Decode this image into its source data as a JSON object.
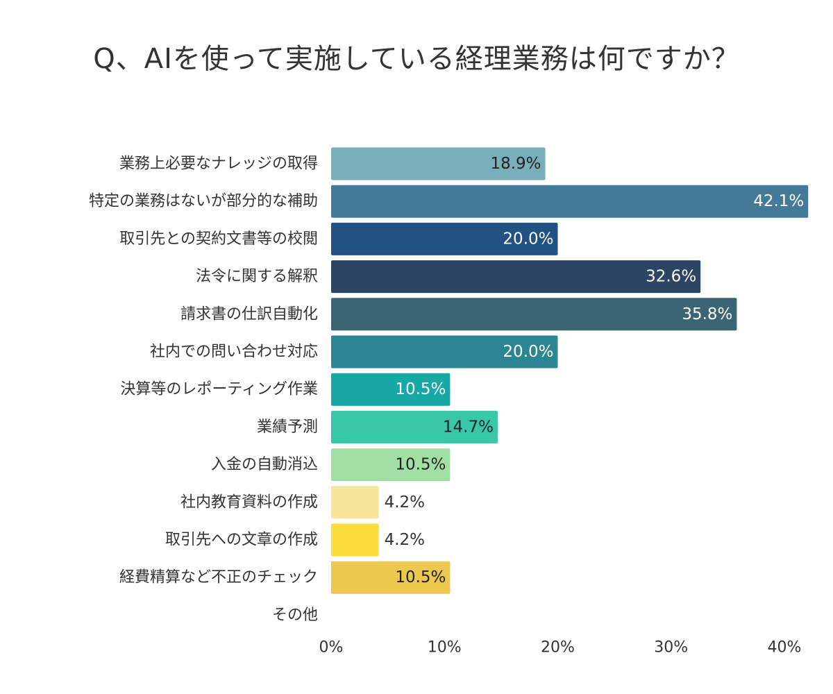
{
  "chart_data": {
    "type": "bar",
    "orientation": "horizontal",
    "title": "Q、AIを使って実施している経理業務は何ですか？",
    "categories": [
      "業務上必要なナレッジの取得",
      "特定の業務はないが部分的な補助",
      "取引先との契約文書等の校閲",
      "法令に関する解釈",
      "請求書の仕訳自動化",
      "社内での問い合わせ対応",
      "決算等のレポーティング作業",
      "業績予測",
      "入金の自動消込",
      "社内教育資料の作成",
      "取引先への文章の作成",
      "経費精算など不正のチェック",
      "その他"
    ],
    "values": [
      18.9,
      42.1,
      20.0,
      32.6,
      35.8,
      20.0,
      10.5,
      14.7,
      10.5,
      4.2,
      4.2,
      10.5,
      null
    ],
    "value_labels": [
      "18.9%",
      "42.1%",
      "20.0%",
      "32.6%",
      "35.8%",
      "20.0%",
      "10.5%",
      "14.7%",
      "10.5%",
      "4.2%",
      "4.2%",
      "10.5%",
      ""
    ],
    "colors": [
      "#7aaeba",
      "#447998",
      "#235184",
      "#2c4563",
      "#3b6475",
      "#2b8592",
      "#17a8a6",
      "#38c8a8",
      "#a2dfa5",
      "#f8e49a",
      "#fcdb3d",
      "#edc84e",
      "#cccccc"
    ],
    "label_colors": [
      "#222222",
      "#ffffff",
      "#ffffff",
      "#ffffff",
      "#ffffff",
      "#ffffff",
      "#ffffff",
      "#222222",
      "#222222",
      "#333333",
      "#333333",
      "#222222",
      "#333333"
    ],
    "xlim": [
      0,
      40
    ],
    "xticks": [
      0,
      10,
      20,
      30,
      40
    ],
    "xtick_labels": [
      "0%",
      "10%",
      "20%",
      "30%",
      "40%"
    ],
    "grid": false,
    "legend": "none"
  }
}
